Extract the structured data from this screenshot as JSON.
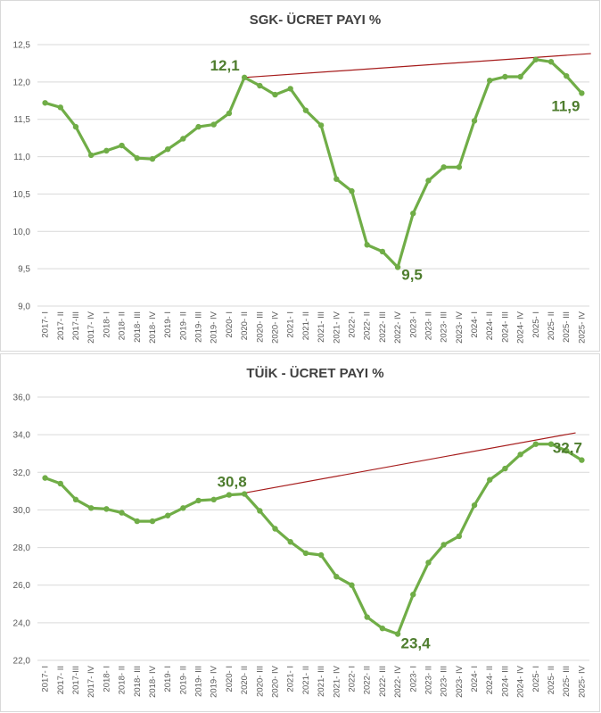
{
  "chart_data": [
    {
      "type": "line",
      "title": "SGK- ÜCRET PAYI %",
      "xlabel": "",
      "ylabel": "",
      "ylim": [
        9.0,
        12.5
      ],
      "yticks": [
        "9,0",
        "9,5",
        "10,0",
        "10,5",
        "11,0",
        "11,5",
        "12,0",
        "12,5"
      ],
      "ytick_values": [
        9.0,
        9.5,
        10.0,
        10.5,
        11.0,
        11.5,
        12.0,
        12.5
      ],
      "categories": [
        "2017- I",
        "2017- II",
        "2017-III",
        "2017- IV",
        "2018- I",
        "2018- II",
        "2018- III",
        "2018- IV",
        "2019- I",
        "2019- II",
        "2019- III",
        "2019- IV",
        "2020- I",
        "2020- II",
        "2020- III",
        "2020- IV",
        "2021- I",
        "2021- II",
        "2021- III",
        "2021- IV",
        "2022- I",
        "2022- II",
        "2022- III",
        "2022- IV",
        "2023- I",
        "2023- II",
        "2023- III",
        "2023- IV",
        "2024- I",
        "2024- II",
        "2024- III",
        "2024- IV",
        "2025- I",
        "2025- II",
        "2025- III",
        "2025- IV"
      ],
      "series": [
        {
          "name": "SGK ücret payı",
          "values": [
            11.72,
            11.66,
            11.4,
            11.02,
            11.08,
            11.15,
            10.98,
            10.97,
            11.1,
            11.24,
            11.4,
            11.43,
            11.58,
            12.06,
            11.95,
            11.83,
            11.91,
            11.62,
            11.42,
            10.7,
            10.54,
            9.82,
            9.73,
            9.52,
            10.24,
            10.68,
            10.86,
            10.86,
            11.48,
            12.02,
            12.07,
            12.07,
            12.3,
            12.27,
            12.08,
            11.85
          ]
        }
      ],
      "trendline": {
        "from_category": "2020- II",
        "from_value": 12.06,
        "to_category": "2025- IV",
        "to_value": 12.38
      },
      "annotations": [
        {
          "text": "12,1",
          "category": "2020- II",
          "value": 12.06
        },
        {
          "text": "9,5",
          "category": "2022- IV",
          "value": 9.52
        },
        {
          "text": "11,9",
          "category": "2025- IV",
          "value": 11.85
        }
      ]
    },
    {
      "type": "line",
      "title": "TÜİK - ÜCRET PAYI %",
      "xlabel": "",
      "ylabel": "",
      "ylim": [
        22.0,
        36.0
      ],
      "yticks": [
        "22,0",
        "24,0",
        "26,0",
        "28,0",
        "30,0",
        "32,0",
        "34,0",
        "36,0"
      ],
      "ytick_values": [
        22.0,
        24.0,
        26.0,
        28.0,
        30.0,
        32.0,
        34.0,
        36.0
      ],
      "categories": [
        "2017- I",
        "2017- II",
        "2017-III",
        "2017- IV",
        "2018- I",
        "2018- II",
        "2018- III",
        "2018- IV",
        "2019- I",
        "2019- II",
        "2019- III",
        "2019- IV",
        "2020- I",
        "2020- II",
        "2020- III",
        "2020- IV",
        "2021- I",
        "2021- II",
        "2021- III",
        "2021- IV",
        "2022- I",
        "2022- II",
        "2022- III",
        "2022- IV",
        "2023- I",
        "2023- II",
        "2023- III",
        "2023- IV",
        "2024- I",
        "2024- II",
        "2024- III",
        "2024- IV",
        "2025- I",
        "2025- II",
        "2025- III",
        "2025- IV"
      ],
      "series": [
        {
          "name": "TÜİK ücret payı",
          "values": [
            31.7,
            31.4,
            30.55,
            30.1,
            30.05,
            29.85,
            29.4,
            29.4,
            29.7,
            30.1,
            30.5,
            30.55,
            30.8,
            30.85,
            29.95,
            29.0,
            28.3,
            27.7,
            27.6,
            26.45,
            26.0,
            24.3,
            23.7,
            23.4,
            25.5,
            27.2,
            28.15,
            28.6,
            30.25,
            31.6,
            32.2,
            32.95,
            33.5,
            33.5,
            33.15,
            32.65
          ]
        }
      ],
      "trendline": {
        "from_category": "2020- II",
        "from_value": 30.9,
        "to_category": "2025- III",
        "to_value": 34.1
      },
      "annotations": [
        {
          "text": "30,8",
          "category": "2020- II",
          "value": 30.85
        },
        {
          "text": "23,4",
          "category": "2022- IV",
          "value": 23.4
        },
        {
          "text": "32,7",
          "category": "2025- IV",
          "value": 32.65
        }
      ]
    }
  ]
}
